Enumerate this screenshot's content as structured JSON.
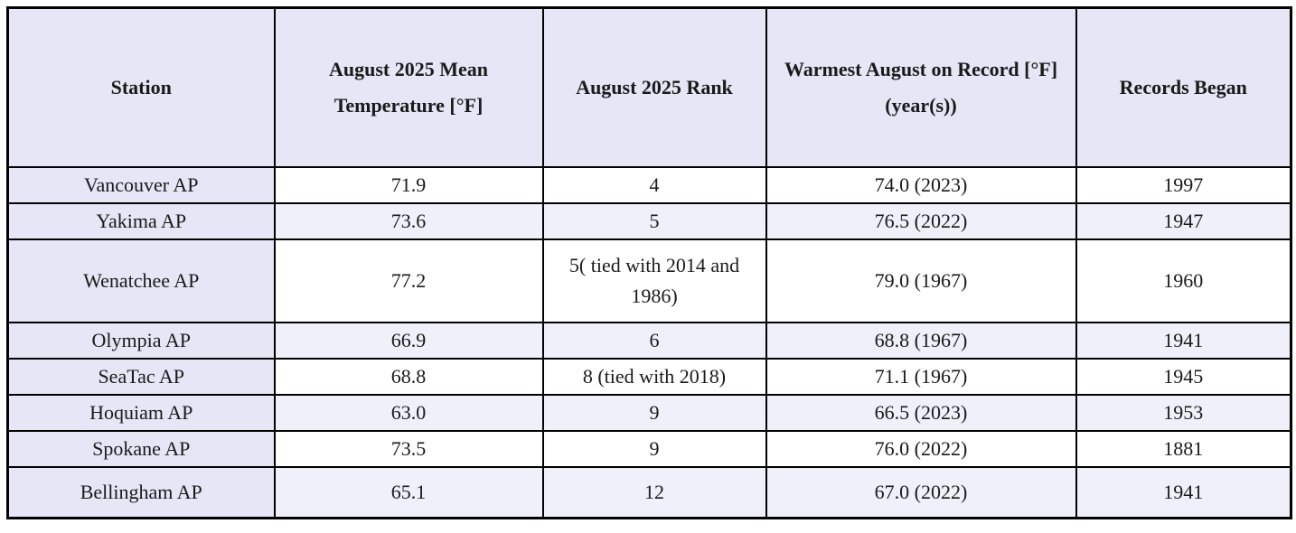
{
  "chart_data": {
    "type": "table",
    "title": "",
    "columns": [
      "Station",
      "August 2025 Mean Temperature [°F]",
      "August 2025 Rank",
      "Warmest August on Record [°F] (year(s))",
      "Records Began"
    ],
    "rows": [
      {
        "station": "Vancouver AP",
        "mean_temp_f": "71.9",
        "rank": "4",
        "warmest_august": "74.0 (2023)",
        "records_began": "1997"
      },
      {
        "station": "Yakima AP",
        "mean_temp_f": "73.6",
        "rank": "5",
        "warmest_august": "76.5 (2022)",
        "records_began": "1947"
      },
      {
        "station": "Wenatchee AP",
        "mean_temp_f": "77.2",
        "rank": "5( tied with 2014 and 1986)",
        "warmest_august": "79.0 (1967)",
        "records_began": "1960"
      },
      {
        "station": "Olympia AP",
        "mean_temp_f": "66.9",
        "rank": "6",
        "warmest_august": "68.8 (1967)",
        "records_began": "1941"
      },
      {
        "station": "SeaTac AP",
        "mean_temp_f": "68.8",
        "rank": "8 (tied with 2018)",
        "warmest_august": "71.1 (1967)",
        "records_began": "1945"
      },
      {
        "station": "Hoquiam AP",
        "mean_temp_f": "63.0",
        "rank": "9",
        "warmest_august": "66.5 (2023)",
        "records_began": "1953"
      },
      {
        "station": "Spokane AP",
        "mean_temp_f": "73.5",
        "rank": "9",
        "warmest_august": "76.0 (2022)",
        "records_began": "1881"
      },
      {
        "station": "Bellingham AP",
        "mean_temp_f": "65.1",
        "rank": "12",
        "warmest_august": "67.0 (2022)",
        "records_began": "1941"
      }
    ],
    "layout_hints": {
      "banded_rows": [
        "Yakima AP",
        "Olympia AP",
        "Hoquiam AP",
        "Bellingham AP"
      ],
      "grid": "on"
    },
    "colors": {
      "header_bg": "#e6e6f6",
      "station_column_bg": "#e6e6f6",
      "banded_row_bg": "#f0f0fa",
      "plain_row_bg": "#ffffff",
      "border": "#000000",
      "text": "#1a1a1a"
    }
  }
}
